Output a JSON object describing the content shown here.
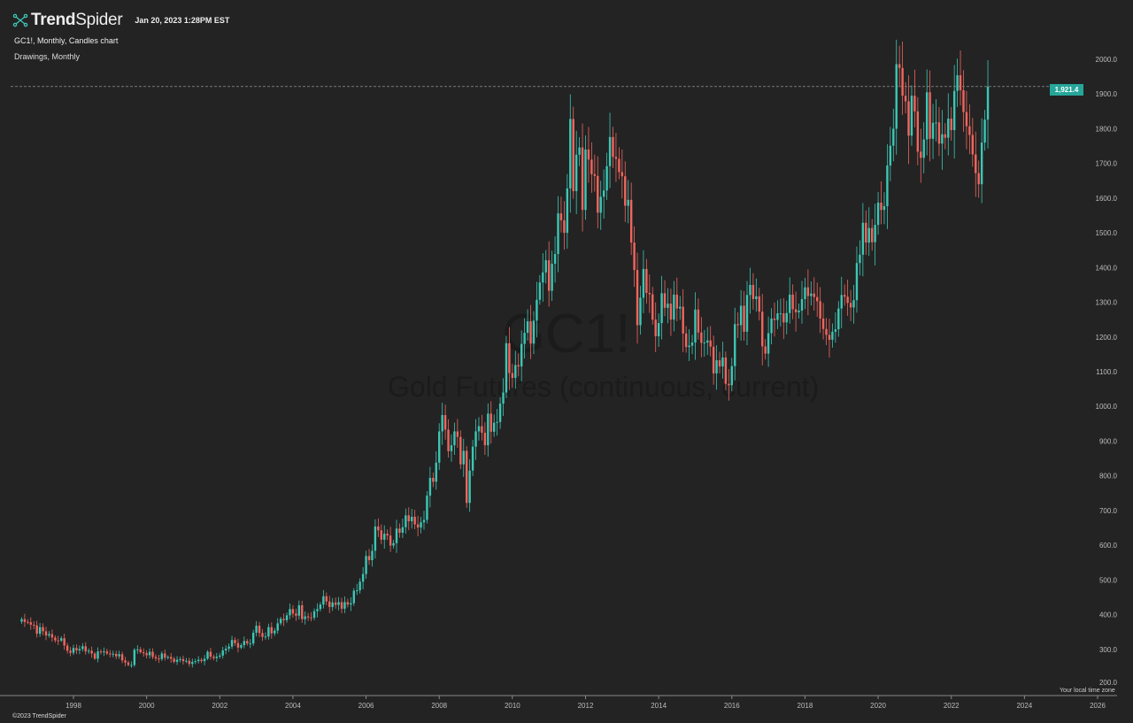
{
  "header": {
    "brand": "TrendSpider",
    "brand_bold": "Trend",
    "brand_light": "Spider",
    "timestamp": "Jan 20, 2023 1:28PM EST",
    "chart_desc": "GC1!, Monthly, Candles chart",
    "drawings": "Drawings, Monthly"
  },
  "watermark": {
    "symbol": "GC1!",
    "name": "Gold Futures (continuous, current)"
  },
  "footer": {
    "copyright": "©2023 TrendSpider",
    "timezone": "Your local time zone"
  },
  "last_price_label": "1,921.4",
  "colors": {
    "up": "#3cc7b5",
    "down": "#f0665e",
    "last_price": "#26a69a",
    "background": "#232323"
  },
  "chart_data": {
    "type": "candlestick",
    "title": "GC1!, Monthly, Candles chart",
    "start": "1996-08",
    "interval": "monthly",
    "closes": [
      387,
      379,
      378,
      371,
      369,
      345,
      364,
      352,
      340,
      344,
      334,
      326,
      325,
      332,
      311,
      296,
      290,
      304,
      297,
      301,
      309,
      294,
      296,
      288,
      273,
      294,
      292,
      294,
      288,
      287,
      287,
      280,
      286,
      268,
      262,
      255,
      255,
      299,
      300,
      292,
      289,
      283,
      293,
      278,
      274,
      272,
      288,
      276,
      278,
      273,
      264,
      270,
      272,
      266,
      267,
      258,
      264,
      266,
      270,
      266,
      273,
      293,
      279,
      275,
      279,
      282,
      297,
      302,
      308,
      327,
      318,
      305,
      312,
      324,
      317,
      317,
      348,
      368,
      347,
      336,
      337,
      364,
      346,
      354,
      375,
      388,
      384,
      398,
      416,
      403,
      397,
      427,
      387,
      395,
      392,
      391,
      410,
      416,
      429,
      453,
      438,
      422,
      435,
      428,
      436,
      417,
      436,
      429,
      433,
      469,
      470,
      495,
      517,
      569,
      557,
      584,
      654,
      643,
      616,
      633,
      628,
      599,
      606,
      648,
      636,
      652,
      686,
      669,
      682,
      660,
      651,
      666,
      673,
      743,
      794,
      783,
      838,
      928,
      975,
      933,
      871,
      888,
      928,
      912,
      833,
      872,
      722,
      815,
      884,
      928,
      943,
      924,
      888,
      979,
      927,
      953,
      955,
      1008,
      1040,
      1182,
      1096,
      1082,
      1119,
      1115,
      1180,
      1212,
      1245,
      1181,
      1247,
      1307,
      1357,
      1386,
      1421,
      1333,
      1411,
      1439,
      1556,
      1536,
      1500,
      1628,
      1828,
      1620,
      1725,
      1746,
      1566,
      1740,
      1711,
      1669,
      1664,
      1558,
      1604,
      1622,
      1692,
      1776,
      1719,
      1713,
      1675,
      1663,
      1578,
      1595,
      1472,
      1393,
      1234,
      1313,
      1396,
      1327,
      1323,
      1250,
      1202,
      1240,
      1326,
      1284,
      1296,
      1250,
      1322,
      1282,
      1287,
      1210,
      1171,
      1175,
      1184,
      1279,
      1213,
      1183,
      1184,
      1190,
      1172,
      1095,
      1133,
      1115,
      1141,
      1065,
      1061,
      1116,
      1237,
      1234,
      1290,
      1215,
      1321,
      1350,
      1309,
      1317,
      1273,
      1173,
      1152,
      1211,
      1253,
      1249,
      1268,
      1268,
      1242,
      1269,
      1322,
      1280,
      1271,
      1276,
      1309,
      1343,
      1318,
      1325,
      1315,
      1303,
      1253,
      1223,
      1206,
      1192,
      1215,
      1222,
      1282,
      1321,
      1316,
      1298,
      1285,
      1306,
      1413,
      1437,
      1529,
      1472,
      1514,
      1473,
      1523,
      1587,
      1566,
      1577,
      1694,
      1751,
      1800,
      1986,
      1975,
      1895,
      1879,
      1780,
      1895,
      1850,
      1734,
      1716,
      1769,
      1905,
      1771,
      1817,
      1818,
      1757,
      1784,
      1774,
      1829,
      1796,
      1909,
      1954,
      1911,
      1848,
      1807,
      1782,
      1726,
      1672,
      1640,
      1760,
      1826,
      1921
    ],
    "first_open": 380,
    "last_price": 1921.4,
    "ylim": [
      200,
      2000
    ],
    "yticks": [
      "2000.0",
      "1900.0",
      "1800.0",
      "1700.0",
      "1600.0",
      "1500.0",
      "1400.0",
      "1300.0",
      "1200.0",
      "1100.0",
      "1000.0",
      "900.0",
      "800.0",
      "700.0",
      "600.0",
      "500.0",
      "400.0",
      "300.0",
      "200.0"
    ],
    "xticks": [
      "1998",
      "2000",
      "2002",
      "2004",
      "2006",
      "2008",
      "2010",
      "2012",
      "2014",
      "2016",
      "2018",
      "2020",
      "2022",
      "2024",
      "2026"
    ],
    "xlabel": "",
    "ylabel": ""
  }
}
